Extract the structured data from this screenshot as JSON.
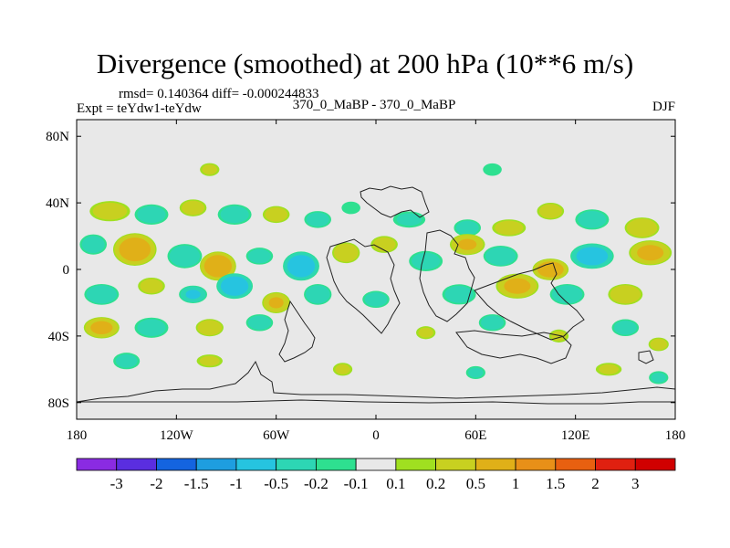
{
  "title": "Divergence (smoothed) at 200 hPa (10**6 m/s)",
  "stats_line": "rmsd= 0.140364 diff= -0.000244833",
  "experiment": "Expt = teYdw1-teYdw",
  "comparison": "370_0_MaBP - 370_0_MaBP",
  "season": "DJF",
  "chart_data": {
    "type": "heatmap",
    "variable": "Divergence (smoothed) at 200 hPa",
    "units": "10**6 m/s",
    "x_axis": {
      "range": [
        -180,
        180
      ],
      "ticks": [
        -180,
        -120,
        -60,
        0,
        60,
        120,
        180
      ],
      "tick_labels": [
        "180",
        "120W",
        "60W",
        "0",
        "60E",
        "120E",
        "180"
      ]
    },
    "y_axis": {
      "range": [
        -90,
        90
      ],
      "ticks": [
        80,
        40,
        0,
        -40,
        -80
      ],
      "tick_labels": [
        "80N",
        "40N",
        "0",
        "40S",
        "80S"
      ]
    },
    "colorbar": {
      "labels": [
        "-3",
        "-2",
        "-1.5",
        "-1",
        "-0.5",
        "-0.2",
        "-0.1",
        "0.1",
        "0.2",
        "0.5",
        "1",
        "1.5",
        "2",
        "3"
      ],
      "colors": [
        "#8a2be2",
        "#5a2ee0",
        "#1464e0",
        "#1e9ee0",
        "#26c4e0",
        "#2dd6b4",
        "#2ee090",
        "#e8e8e8",
        "#a0e020",
        "#c8d020",
        "#e0b018",
        "#e89018",
        "#e86010",
        "#e02010",
        "#d00000"
      ]
    },
    "blobs": [
      {
        "lon": -160,
        "lat": 35,
        "rx": 12,
        "ry": 6,
        "v": 0.3
      },
      {
        "lon": -135,
        "lat": 33,
        "rx": 10,
        "ry": 6,
        "v": -0.3
      },
      {
        "lon": -110,
        "lat": 37,
        "rx": 8,
        "ry": 5,
        "v": 0.3
      },
      {
        "lon": -85,
        "lat": 33,
        "rx": 10,
        "ry": 6,
        "v": -0.3
      },
      {
        "lon": -60,
        "lat": 33,
        "rx": 8,
        "ry": 5,
        "v": 0.3
      },
      {
        "lon": -35,
        "lat": 30,
        "rx": 8,
        "ry": 5,
        "v": -0.3
      },
      {
        "lon": -15,
        "lat": 37,
        "rx": 6,
        "ry": 4,
        "v": -0.15
      },
      {
        "lon": 20,
        "lat": 30,
        "rx": 10,
        "ry": 5,
        "v": -0.2
      },
      {
        "lon": 55,
        "lat": 25,
        "rx": 8,
        "ry": 5,
        "v": -0.3
      },
      {
        "lon": 80,
        "lat": 25,
        "rx": 10,
        "ry": 5,
        "v": 0.3
      },
      {
        "lon": 105,
        "lat": 35,
        "rx": 8,
        "ry": 5,
        "v": 0.3
      },
      {
        "lon": 130,
        "lat": 30,
        "rx": 10,
        "ry": 6,
        "v": -0.3
      },
      {
        "lon": 160,
        "lat": 25,
        "rx": 10,
        "ry": 6,
        "v": 0.4
      },
      {
        "lon": -170,
        "lat": 15,
        "rx": 8,
        "ry": 6,
        "v": -0.3
      },
      {
        "lon": -145,
        "lat": 12,
        "rx": 12,
        "ry": 9,
        "v": 0.8
      },
      {
        "lon": -115,
        "lat": 8,
        "rx": 10,
        "ry": 7,
        "v": -0.4
      },
      {
        "lon": -95,
        "lat": 2,
        "rx": 10,
        "ry": 8,
        "v": 0.9
      },
      {
        "lon": -70,
        "lat": 8,
        "rx": 8,
        "ry": 5,
        "v": -0.3
      },
      {
        "lon": -45,
        "lat": 2,
        "rx": 10,
        "ry": 8,
        "v": -0.9
      },
      {
        "lon": -18,
        "lat": 10,
        "rx": 8,
        "ry": 6,
        "v": 0.4
      },
      {
        "lon": 5,
        "lat": 15,
        "rx": 8,
        "ry": 5,
        "v": 0.3
      },
      {
        "lon": 30,
        "lat": 5,
        "rx": 10,
        "ry": 6,
        "v": -0.3
      },
      {
        "lon": 55,
        "lat": 15,
        "rx": 10,
        "ry": 6,
        "v": 0.5
      },
      {
        "lon": 75,
        "lat": 8,
        "rx": 10,
        "ry": 6,
        "v": -0.4
      },
      {
        "lon": 105,
        "lat": 0,
        "rx": 10,
        "ry": 6,
        "v": 0.8
      },
      {
        "lon": 130,
        "lat": 8,
        "rx": 12,
        "ry": 7,
        "v": -0.8
      },
      {
        "lon": 165,
        "lat": 10,
        "rx": 12,
        "ry": 7,
        "v": 0.6
      },
      {
        "lon": -165,
        "lat": -15,
        "rx": 10,
        "ry": 6,
        "v": -0.4
      },
      {
        "lon": -135,
        "lat": -10,
        "rx": 8,
        "ry": 5,
        "v": 0.3
      },
      {
        "lon": -110,
        "lat": -15,
        "rx": 8,
        "ry": 5,
        "v": -0.5
      },
      {
        "lon": -85,
        "lat": -10,
        "rx": 10,
        "ry": 7,
        "v": -0.9
      },
      {
        "lon": -60,
        "lat": -20,
        "rx": 8,
        "ry": 6,
        "v": 0.5
      },
      {
        "lon": -35,
        "lat": -15,
        "rx": 8,
        "ry": 6,
        "v": -0.4
      },
      {
        "lon": 0,
        "lat": -18,
        "rx": 8,
        "ry": 5,
        "v": -0.3
      },
      {
        "lon": 50,
        "lat": -15,
        "rx": 10,
        "ry": 6,
        "v": -0.3
      },
      {
        "lon": 85,
        "lat": -10,
        "rx": 12,
        "ry": 7,
        "v": 0.6
      },
      {
        "lon": 115,
        "lat": -15,
        "rx": 10,
        "ry": 6,
        "v": -0.4
      },
      {
        "lon": 150,
        "lat": -15,
        "rx": 10,
        "ry": 6,
        "v": 0.4
      },
      {
        "lon": -165,
        "lat": -35,
        "rx": 10,
        "ry": 6,
        "v": 0.6
      },
      {
        "lon": -135,
        "lat": -35,
        "rx": 10,
        "ry": 6,
        "v": -0.3
      },
      {
        "lon": -100,
        "lat": -35,
        "rx": 8,
        "ry": 5,
        "v": 0.4
      },
      {
        "lon": -70,
        "lat": -32,
        "rx": 8,
        "ry": 5,
        "v": -0.3
      },
      {
        "lon": 30,
        "lat": -38,
        "rx": 6,
        "ry": 4,
        "v": 0.2
      },
      {
        "lon": 70,
        "lat": -32,
        "rx": 8,
        "ry": 5,
        "v": -0.3
      },
      {
        "lon": 110,
        "lat": -40,
        "rx": 6,
        "ry": 4,
        "v": 0.2
      },
      {
        "lon": 150,
        "lat": -35,
        "rx": 8,
        "ry": 5,
        "v": -0.3
      },
      {
        "lon": 170,
        "lat": -45,
        "rx": 6,
        "ry": 4,
        "v": 0.3
      },
      {
        "lon": -150,
        "lat": -55,
        "rx": 8,
        "ry": 5,
        "v": -0.25
      },
      {
        "lon": -100,
        "lat": -55,
        "rx": 8,
        "ry": 4,
        "v": 0.2
      },
      {
        "lon": -20,
        "lat": -60,
        "rx": 6,
        "ry": 4,
        "v": 0.2
      },
      {
        "lon": 60,
        "lat": -62,
        "rx": 6,
        "ry": 4,
        "v": -0.2
      },
      {
        "lon": 140,
        "lat": -60,
        "rx": 8,
        "ry": 4,
        "v": 0.2
      },
      {
        "lon": 170,
        "lat": -65,
        "rx": 6,
        "ry": 4,
        "v": -0.2
      },
      {
        "lon": -100,
        "lat": 60,
        "rx": 6,
        "ry": 4,
        "v": 0.2
      },
      {
        "lon": 70,
        "lat": 60,
        "rx": 6,
        "ry": 4,
        "v": -0.15
      }
    ]
  }
}
